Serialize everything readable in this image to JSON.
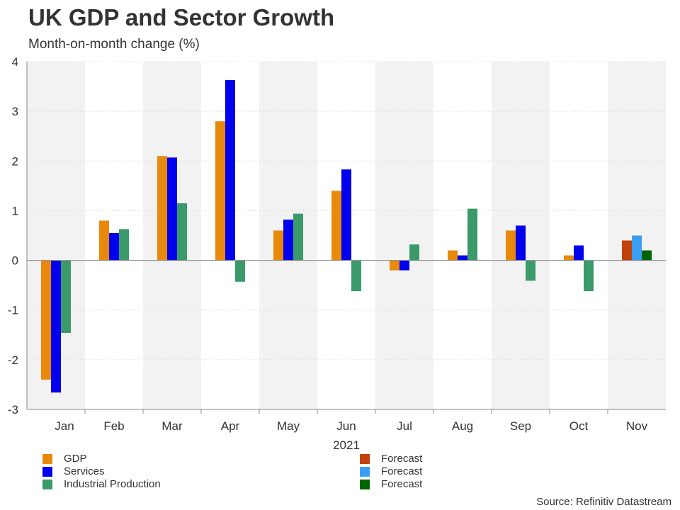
{
  "title": "UK GDP and Sector Growth",
  "subtitle": "Month-on-month change (%)",
  "source": "Source: Refinitiv Datastream",
  "colors": {
    "gdp": "#E8890C",
    "services": "#0000EE",
    "industrial": "#3A9A6A",
    "forecast_gdp": "#C0420C",
    "forecast_services": "#3C9EF0",
    "forecast_industrial": "#006400",
    "band": "#F2F2F2",
    "axis": "#888888",
    "grid": "#D9D9D9"
  },
  "legend": [
    {
      "label": "GDP",
      "color": "#E8890C"
    },
    {
      "label": "Services",
      "color": "#0000EE"
    },
    {
      "label": "Industrial Production",
      "color": "#3A9A6A"
    },
    {
      "label": "Forecast",
      "color": "#C0420C"
    },
    {
      "label": "Forecast",
      "color": "#3C9EF0"
    },
    {
      "label": "Forecast",
      "color": "#006400"
    }
  ],
  "chart_data": {
    "type": "bar",
    "title": "UK GDP and Sector Growth",
    "subtitle": "Month-on-month change (%)",
    "xlabel": "2021",
    "ylabel": "",
    "ylim": [
      -3,
      4
    ],
    "yticks": [
      "4",
      "3",
      "2",
      "1",
      "0",
      "-1",
      "-2",
      "-3"
    ],
    "categories": [
      "Jan",
      "Feb",
      "Mar",
      "Apr",
      "May",
      "Jun",
      "Jul",
      "Aug",
      "Sep",
      "Oct",
      "Nov"
    ],
    "series": [
      {
        "name": "GDP",
        "values": [
          -2.4,
          0.8,
          2.1,
          2.8,
          0.6,
          1.4,
          -0.2,
          0.2,
          0.6,
          0.1,
          null
        ]
      },
      {
        "name": "Services",
        "values": [
          -2.66,
          0.55,
          2.07,
          3.63,
          0.82,
          1.83,
          -0.2,
          0.1,
          0.7,
          0.3,
          null
        ]
      },
      {
        "name": "Industrial Production",
        "values": [
          -1.46,
          0.63,
          1.15,
          -0.43,
          0.94,
          -0.62,
          0.32,
          1.04,
          -0.41,
          -0.62,
          null
        ]
      },
      {
        "name": "Forecast",
        "values": [
          null,
          null,
          null,
          null,
          null,
          null,
          null,
          null,
          null,
          null,
          0.4
        ]
      },
      {
        "name": "Forecast",
        "values": [
          null,
          null,
          null,
          null,
          null,
          null,
          null,
          null,
          null,
          null,
          0.5
        ]
      },
      {
        "name": "Forecast",
        "values": [
          null,
          null,
          null,
          null,
          null,
          null,
          null,
          null,
          null,
          null,
          0.2
        ]
      }
    ],
    "grid": true,
    "legend_position": "bottom"
  }
}
